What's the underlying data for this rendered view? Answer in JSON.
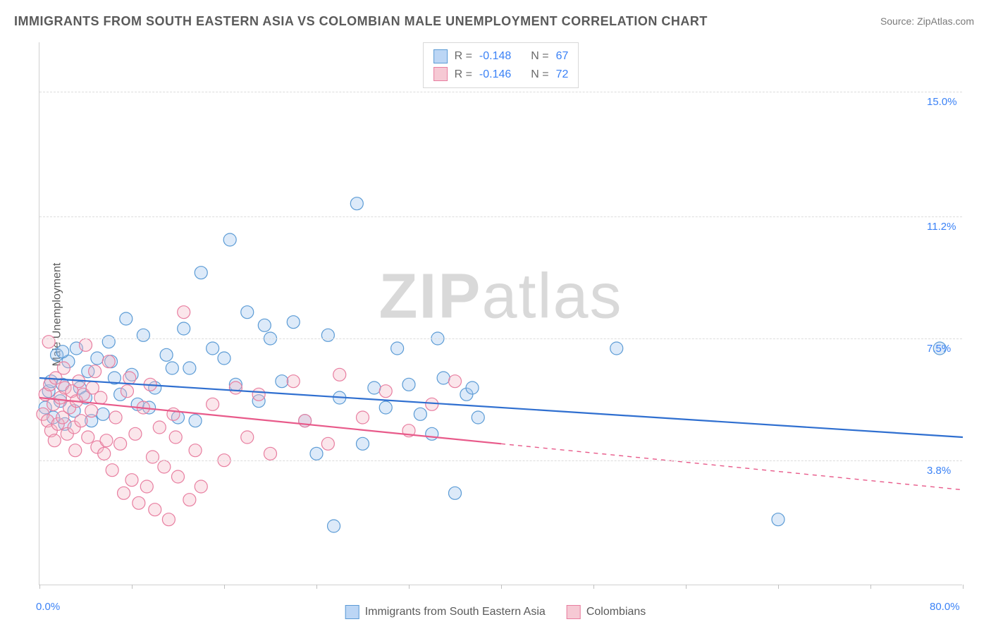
{
  "title": "IMMIGRANTS FROM SOUTH EASTERN ASIA VS COLOMBIAN MALE UNEMPLOYMENT CORRELATION CHART",
  "source": "Source: ZipAtlas.com",
  "y_axis_label": "Male Unemployment",
  "watermark_bold": "ZIP",
  "watermark_rest": "atlas",
  "chart": {
    "type": "scatter",
    "background_color": "#ffffff",
    "grid_color": "#dcdcdc",
    "axis_color": "#d0d0d0",
    "xlim": [
      0,
      80
    ],
    "ylim": [
      0,
      16.5
    ],
    "x_ticks": [
      0,
      8,
      16,
      24,
      32,
      40,
      48,
      56,
      64,
      72,
      80
    ],
    "y_gridlines": [
      3.8,
      7.5,
      11.2,
      15.0
    ],
    "y_tick_labels": [
      "3.8%",
      "7.5%",
      "11.2%",
      "15.0%"
    ],
    "x_left_label": "0.0%",
    "x_right_label": "80.0%",
    "marker_radius": 9,
    "marker_stroke_width": 1.2,
    "marker_fill_opacity": 0.35,
    "trend_line_width": 2.2,
    "label_fontsize": 15,
    "label_color": "#3b82f6",
    "title_fontsize": 18,
    "title_color": "#5a5a5a"
  },
  "legend_corr": {
    "rows": [
      {
        "swatch_fill": "#bcd6f5",
        "swatch_border": "#5b9bd5",
        "r_label": "R =",
        "r_value": "-0.148",
        "n_label": "N =",
        "n_value": "67"
      },
      {
        "swatch_fill": "#f6c9d4",
        "swatch_border": "#e87ea0",
        "r_label": "R =",
        "r_value": "-0.146",
        "n_label": "N =",
        "n_value": "72"
      }
    ]
  },
  "legend_bottom": {
    "items": [
      {
        "swatch_fill": "#bcd6f5",
        "swatch_border": "#5b9bd5",
        "label": "Immigrants from South Eastern Asia"
      },
      {
        "swatch_fill": "#f6c9d4",
        "swatch_border": "#e87ea0",
        "label": "Colombians"
      }
    ]
  },
  "series": [
    {
      "name": "sea",
      "color_fill": "#9fc4ee",
      "color_stroke": "#5b9bd5",
      "trend_color": "#2f6fd0",
      "trend": {
        "x1": 0,
        "y1": 6.3,
        "x2": 80,
        "y2": 4.5,
        "dash_from_x": null
      },
      "points": [
        [
          0.5,
          5.4
        ],
        [
          0.8,
          5.9
        ],
        [
          1.0,
          6.2
        ],
        [
          1.2,
          5.1
        ],
        [
          1.5,
          7.0
        ],
        [
          1.8,
          5.6
        ],
        [
          2.0,
          6.1
        ],
        [
          2.2,
          4.9
        ],
        [
          2.5,
          6.8
        ],
        [
          3.0,
          5.3
        ],
        [
          3.2,
          7.2
        ],
        [
          3.5,
          6.0
        ],
        [
          4.0,
          5.7
        ],
        [
          4.2,
          6.5
        ],
        [
          5.0,
          6.9
        ],
        [
          5.5,
          5.2
        ],
        [
          6.0,
          7.4
        ],
        [
          6.5,
          6.3
        ],
        [
          7.0,
          5.8
        ],
        [
          7.5,
          8.1
        ],
        [
          8.0,
          6.4
        ],
        [
          8.5,
          5.5
        ],
        [
          9.0,
          7.6
        ],
        [
          10.0,
          6.0
        ],
        [
          11.0,
          7.0
        ],
        [
          12.0,
          5.1
        ],
        [
          12.5,
          7.8
        ],
        [
          13.0,
          6.6
        ],
        [
          14.0,
          9.5
        ],
        [
          15.0,
          7.2
        ],
        [
          16.5,
          10.5
        ],
        [
          17.0,
          6.1
        ],
        [
          18.0,
          8.3
        ],
        [
          19.0,
          5.6
        ],
        [
          20.0,
          7.5
        ],
        [
          21.0,
          6.2
        ],
        [
          22.0,
          8.0
        ],
        [
          23.0,
          5.0
        ],
        [
          24.0,
          4.0
        ],
        [
          25.0,
          7.6
        ],
        [
          25.5,
          1.8
        ],
        [
          26.0,
          5.7
        ],
        [
          27.5,
          11.6
        ],
        [
          28.0,
          4.3
        ],
        [
          29.0,
          6.0
        ],
        [
          30.0,
          5.4
        ],
        [
          31.0,
          7.2
        ],
        [
          32.0,
          6.1
        ],
        [
          33.0,
          5.2
        ],
        [
          34.0,
          4.6
        ],
        [
          34.5,
          7.5
        ],
        [
          35.0,
          6.3
        ],
        [
          36.0,
          2.8
        ],
        [
          37.0,
          5.8
        ],
        [
          37.5,
          6.0
        ],
        [
          38.0,
          5.1
        ],
        [
          50.0,
          7.2
        ],
        [
          64.0,
          2.0
        ],
        [
          78.0,
          7.2
        ],
        [
          2.0,
          7.1
        ],
        [
          4.5,
          5.0
        ],
        [
          6.2,
          6.8
        ],
        [
          9.5,
          5.4
        ],
        [
          11.5,
          6.6
        ],
        [
          13.5,
          5.0
        ],
        [
          16.0,
          6.9
        ],
        [
          19.5,
          7.9
        ]
      ]
    },
    {
      "name": "colombian",
      "color_fill": "#f3b6c6",
      "color_stroke": "#e87ea0",
      "trend_color": "#e85a8a",
      "trend": {
        "x1": 0,
        "y1": 5.7,
        "x2": 80,
        "y2": 2.9,
        "dash_from_x": 40
      },
      "points": [
        [
          0.3,
          5.2
        ],
        [
          0.5,
          5.8
        ],
        [
          0.7,
          5.0
        ],
        [
          0.9,
          6.1
        ],
        [
          1.0,
          4.7
        ],
        [
          1.2,
          5.5
        ],
        [
          1.4,
          6.3
        ],
        [
          1.6,
          4.9
        ],
        [
          1.8,
          5.7
        ],
        [
          2.0,
          5.1
        ],
        [
          2.2,
          6.0
        ],
        [
          2.4,
          4.6
        ],
        [
          2.6,
          5.4
        ],
        [
          2.8,
          5.9
        ],
        [
          3.0,
          4.8
        ],
        [
          3.2,
          5.6
        ],
        [
          3.4,
          6.2
        ],
        [
          3.6,
          5.0
        ],
        [
          3.8,
          5.8
        ],
        [
          4.0,
          7.3
        ],
        [
          4.2,
          4.5
        ],
        [
          4.5,
          5.3
        ],
        [
          4.8,
          6.5
        ],
        [
          5.0,
          4.2
        ],
        [
          5.3,
          5.7
        ],
        [
          5.6,
          4.0
        ],
        [
          6.0,
          6.8
        ],
        [
          6.3,
          3.5
        ],
        [
          6.6,
          5.1
        ],
        [
          7.0,
          4.3
        ],
        [
          7.3,
          2.8
        ],
        [
          7.6,
          5.9
        ],
        [
          8.0,
          3.2
        ],
        [
          8.3,
          4.6
        ],
        [
          8.6,
          2.5
        ],
        [
          9.0,
          5.4
        ],
        [
          9.3,
          3.0
        ],
        [
          9.6,
          6.1
        ],
        [
          10.0,
          2.3
        ],
        [
          10.4,
          4.8
        ],
        [
          10.8,
          3.6
        ],
        [
          11.2,
          2.0
        ],
        [
          11.6,
          5.2
        ],
        [
          12.0,
          3.3
        ],
        [
          12.5,
          8.3
        ],
        [
          13.0,
          2.6
        ],
        [
          13.5,
          4.1
        ],
        [
          14.0,
          3.0
        ],
        [
          15.0,
          5.5
        ],
        [
          16.0,
          3.8
        ],
        [
          17.0,
          6.0
        ],
        [
          18.0,
          4.5
        ],
        [
          19.0,
          5.8
        ],
        [
          20.0,
          4.0
        ],
        [
          22.0,
          6.2
        ],
        [
          23.0,
          5.0
        ],
        [
          25.0,
          4.3
        ],
        [
          26.0,
          6.4
        ],
        [
          28.0,
          5.1
        ],
        [
          30.0,
          5.9
        ],
        [
          32.0,
          4.7
        ],
        [
          34.0,
          5.5
        ],
        [
          36.0,
          6.2
        ],
        [
          0.8,
          7.4
        ],
        [
          1.3,
          4.4
        ],
        [
          2.1,
          6.6
        ],
        [
          3.1,
          4.1
        ],
        [
          4.6,
          6.0
        ],
        [
          5.8,
          4.4
        ],
        [
          7.8,
          6.3
        ],
        [
          9.8,
          3.9
        ],
        [
          11.8,
          4.5
        ]
      ]
    }
  ]
}
